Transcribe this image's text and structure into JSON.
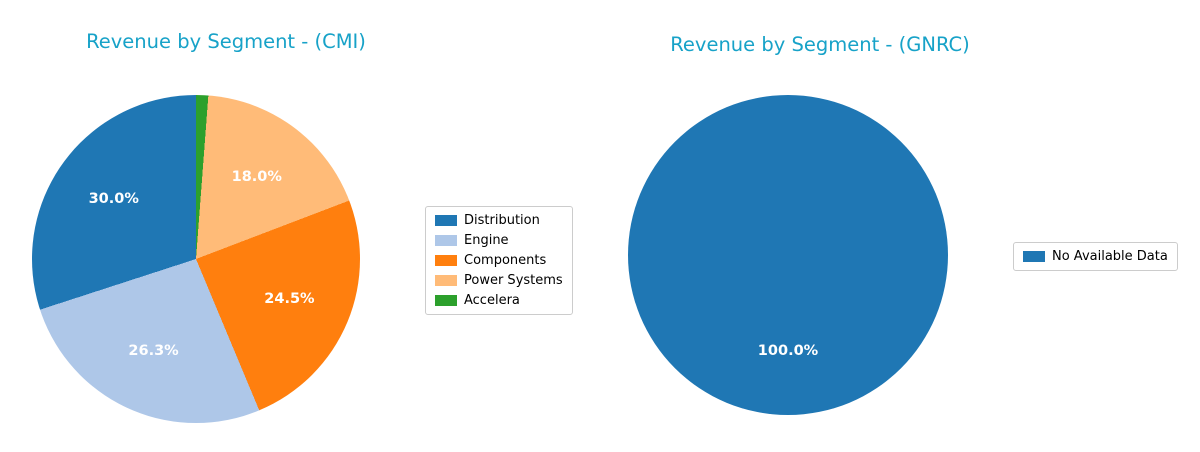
{
  "figure": {
    "background": "#ffffff"
  },
  "chart_data": [
    {
      "type": "pie",
      "title": "Revenue by Segment - (CMI)",
      "title_color": "#17a2c8",
      "start_angle": 90,
      "direction": "counterclockwise",
      "legend_position": "right",
      "pct_label_color": "#ffffff",
      "slices": [
        {
          "label": "Distribution",
          "value": 30.0,
          "pct_label": "30.0%",
          "color": "#1f77b4"
        },
        {
          "label": "Engine",
          "value": 26.3,
          "pct_label": "26.3%",
          "color": "#aec7e8"
        },
        {
          "label": "Components",
          "value": 24.5,
          "pct_label": "24.5%",
          "color": "#ff7f0e"
        },
        {
          "label": "Power Systems",
          "value": 18.0,
          "pct_label": "18.0%",
          "color": "#ffbb78"
        },
        {
          "label": "Accelera",
          "value": 1.2,
          "pct_label": null,
          "color": "#2ca02c"
        }
      ]
    },
    {
      "type": "pie",
      "title": "Revenue by Segment - (GNRC)",
      "title_color": "#17a2c8",
      "start_angle": 90,
      "direction": "counterclockwise",
      "legend_position": "right",
      "pct_label_color": "#ffffff",
      "slices": [
        {
          "label": "No Available Data",
          "value": 100.0,
          "pct_label": "100.0%",
          "color": "#1f77b4"
        }
      ]
    }
  ]
}
